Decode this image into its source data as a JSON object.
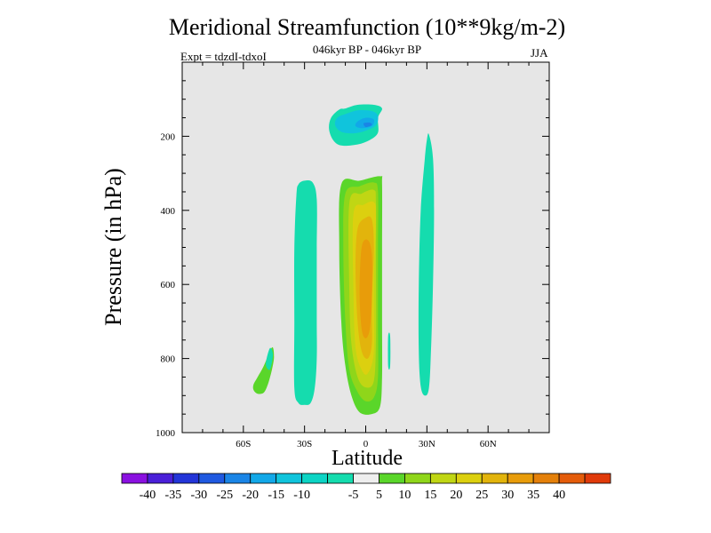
{
  "chart_data": {
    "type": "contour",
    "title": "Meridional Streamfunction (10**9kg/m-2)",
    "subtitle": "046kyr BP - 046kyr BP",
    "experiment": "Expt = tdzdI-tdxoI",
    "season": "JJA",
    "xlabel": "Latitude",
    "ylabel": "Pressure (in hPa)",
    "xlim": [
      -90,
      90
    ],
    "ylim": [
      1000,
      0
    ],
    "x_ticks": [
      {
        "value": -60,
        "label": "60S"
      },
      {
        "value": -30,
        "label": "30S"
      },
      {
        "value": 0,
        "label": "0"
      },
      {
        "value": 30,
        "label": "30N"
      },
      {
        "value": 60,
        "label": "60N"
      }
    ],
    "y_ticks": [
      {
        "value": 200,
        "label": "200"
      },
      {
        "value": 400,
        "label": "400"
      },
      {
        "value": 600,
        "label": "600"
      },
      {
        "value": 800,
        "label": "800"
      },
      {
        "value": 1000,
        "label": "1000"
      }
    ],
    "background_color": "#e6e6e6",
    "colorbar": {
      "colors": [
        "#8a11e0",
        "#4a1fd8",
        "#2335d8",
        "#1f59e0",
        "#1a85e6",
        "#12a8e8",
        "#10c4dc",
        "#0cd4c4",
        "#15dcae",
        "#eeeeee",
        "#5ad62a",
        "#8fd61a",
        "#c0d614",
        "#dcd00f",
        "#e2b40c",
        "#e89c0a",
        "#e4800a",
        "#e45c0a",
        "#e03a0a"
      ],
      "labels": [
        "-40",
        "-35",
        "-30",
        "-25",
        "-20",
        "-15",
        "-10",
        "-5",
        "5",
        "10",
        "15",
        "20",
        "25",
        "30",
        "35",
        "40"
      ]
    },
    "regions": [
      {
        "name": "upper-cell-outer",
        "level": -5,
        "color": "#15dcae",
        "points": [
          [
            -10,
            125
          ],
          [
            -4,
            115
          ],
          [
            4,
            115
          ],
          [
            8,
            125
          ],
          [
            6,
            150
          ],
          [
            6,
            190
          ],
          [
            2,
            210
          ],
          [
            -4,
            222
          ],
          [
            -12,
            225
          ],
          [
            -16,
            210
          ],
          [
            -18,
            180
          ],
          [
            -17,
            150
          ],
          [
            -13,
            128
          ]
        ]
      },
      {
        "name": "upper-cell-middle",
        "level": -10,
        "color": "#10c4dc",
        "points": [
          [
            -10,
            140
          ],
          [
            -4,
            130
          ],
          [
            3,
            132
          ],
          [
            6,
            145
          ],
          [
            5,
            170
          ],
          [
            0,
            185
          ],
          [
            -6,
            192
          ],
          [
            -12,
            188
          ],
          [
            -15,
            170
          ],
          [
            -14,
            150
          ]
        ]
      },
      {
        "name": "upper-cell-inner",
        "level": -15,
        "color": "#12a8e8",
        "points": [
          [
            -4,
            160
          ],
          [
            0,
            150
          ],
          [
            4,
            155
          ],
          [
            3,
            172
          ],
          [
            -2,
            178
          ],
          [
            -5,
            172
          ]
        ]
      },
      {
        "name": "upper-cell-core",
        "level": -20,
        "color": "#1a85e6",
        "points": [
          [
            -1,
            165
          ],
          [
            2,
            163
          ],
          [
            3,
            170
          ],
          [
            0,
            175
          ]
        ]
      },
      {
        "name": "south-column",
        "level": -5,
        "color": "#15dcae",
        "points": [
          [
            -30,
            320
          ],
          [
            -26,
            325
          ],
          [
            -24,
            370
          ],
          [
            -24,
            500
          ],
          [
            -24,
            600
          ],
          [
            -24,
            700
          ],
          [
            -24,
            800
          ],
          [
            -25,
            880
          ],
          [
            -27,
            920
          ],
          [
            -30,
            925
          ],
          [
            -33,
            920
          ],
          [
            -35,
            880
          ],
          [
            -35,
            700
          ],
          [
            -35,
            500
          ],
          [
            -34,
            360
          ],
          [
            -33,
            330
          ]
        ]
      },
      {
        "name": "equatorial-outer",
        "level": 5,
        "color": "#5ad62a",
        "points": [
          [
            -12,
            330
          ],
          [
            -3,
            320
          ],
          [
            7,
            308
          ],
          [
            8,
            330
          ],
          [
            8,
            500
          ],
          [
            8,
            700
          ],
          [
            8,
            850
          ],
          [
            7,
            930
          ],
          [
            3,
            950
          ],
          [
            -3,
            945
          ],
          [
            -7,
            900
          ],
          [
            -10,
            820
          ],
          [
            -12,
            700
          ],
          [
            -13,
            500
          ]
        ]
      },
      {
        "name": "equatorial-10",
        "level": 10,
        "color": "#8fd61a",
        "points": [
          [
            -10,
            355
          ],
          [
            -3,
            335
          ],
          [
            4,
            325
          ],
          [
            6,
            350
          ],
          [
            6,
            500
          ],
          [
            6,
            700
          ],
          [
            6,
            850
          ],
          [
            4,
            905
          ],
          [
            0,
            915
          ],
          [
            -4,
            890
          ],
          [
            -8,
            830
          ],
          [
            -10,
            700
          ],
          [
            -11,
            500
          ]
        ]
      },
      {
        "name": "equatorial-15",
        "level": 15,
        "color": "#c0d614",
        "points": [
          [
            -8,
            380
          ],
          [
            -2,
            355
          ],
          [
            4,
            345
          ],
          [
            5,
            380
          ],
          [
            5,
            550
          ],
          [
            5,
            750
          ],
          [
            4,
            860
          ],
          [
            0,
            878
          ],
          [
            -4,
            850
          ],
          [
            -7,
            760
          ],
          [
            -8,
            620
          ]
        ]
      },
      {
        "name": "equatorial-20",
        "level": 20,
        "color": "#dcd00f",
        "points": [
          [
            -6,
            410
          ],
          [
            -1,
            385
          ],
          [
            4,
            378
          ],
          [
            5,
            420
          ],
          [
            4,
            600
          ],
          [
            4,
            780
          ],
          [
            1,
            840
          ],
          [
            -2,
            830
          ],
          [
            -5,
            770
          ],
          [
            -6,
            620
          ]
        ]
      },
      {
        "name": "equatorial-25",
        "level": 25,
        "color": "#e2b40c",
        "points": [
          [
            -4,
            450
          ],
          [
            0,
            420
          ],
          [
            3,
            425
          ],
          [
            4,
            500
          ],
          [
            3,
            650
          ],
          [
            3,
            760
          ],
          [
            1,
            800
          ],
          [
            -2,
            780
          ],
          [
            -4,
            700
          ],
          [
            -5,
            560
          ]
        ]
      },
      {
        "name": "equatorial-30",
        "level": 30,
        "color": "#e89c0a",
        "points": [
          [
            -2,
            500
          ],
          [
            1,
            480
          ],
          [
            3,
            520
          ],
          [
            3,
            640
          ],
          [
            2,
            720
          ],
          [
            0,
            745
          ],
          [
            -2,
            720
          ],
          [
            -3,
            620
          ]
        ]
      },
      {
        "name": "north-column",
        "level": -5,
        "color": "#15dcae",
        "points": [
          [
            31,
            195
          ],
          [
            33,
            260
          ],
          [
            33.5,
            400
          ],
          [
            33,
            600
          ],
          [
            32,
            780
          ],
          [
            31,
            880
          ],
          [
            29,
            900
          ],
          [
            27,
            875
          ],
          [
            26,
            780
          ],
          [
            26,
            600
          ],
          [
            27,
            400
          ],
          [
            29,
            260
          ],
          [
            30,
            210
          ]
        ]
      },
      {
        "name": "south-green-blob",
        "level": 5,
        "color": "#5ad62a",
        "points": [
          [
            -46,
            770
          ],
          [
            -45,
            795
          ],
          [
            -46,
            830
          ],
          [
            -48,
            870
          ],
          [
            -50,
            892
          ],
          [
            -53,
            895
          ],
          [
            -55,
            885
          ],
          [
            -55,
            870
          ],
          [
            -53,
            850
          ],
          [
            -50,
            820
          ]
        ]
      },
      {
        "name": "south-teal-strip",
        "level": -5,
        "color": "#15dcae",
        "points": [
          [
            -47,
            772
          ],
          [
            -45.5,
            790
          ],
          [
            -47,
            830
          ],
          [
            -49,
            815
          ]
        ]
      },
      {
        "name": "thin-sliver",
        "level": -5,
        "color": "#15dcae",
        "points": [
          [
            11,
            740
          ],
          [
            12,
            740
          ],
          [
            12,
            820
          ],
          [
            11,
            820
          ]
        ]
      }
    ]
  }
}
